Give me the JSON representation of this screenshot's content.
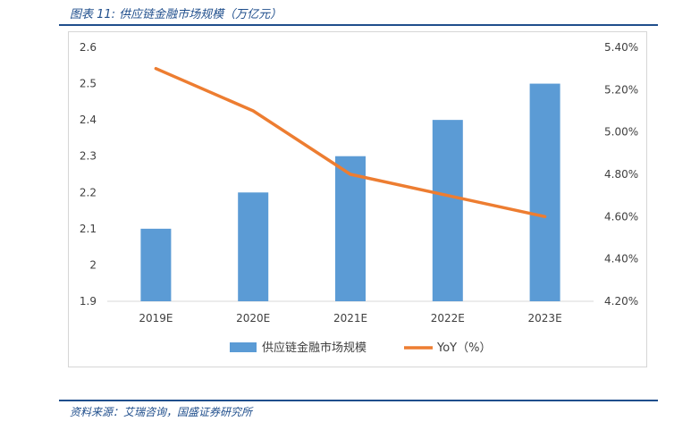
{
  "figure": {
    "title": "图表 11:  供应链金融市场规模（万亿元）",
    "source": "资料来源：艾瑞咨询，国盛证券研究所"
  },
  "colors": {
    "bar": "#5b9bd5",
    "line": "#ed7d31",
    "accent": "#1f4e8c"
  },
  "chart_data": {
    "type": "bar",
    "categories": [
      "2019E",
      "2020E",
      "2021E",
      "2022E",
      "2023E"
    ],
    "series": [
      {
        "name": "供应链金融市场规模",
        "type": "bar",
        "axis": "left",
        "values": [
          2.1,
          2.2,
          2.3,
          2.4,
          2.5
        ]
      },
      {
        "name": "YoY（%）",
        "type": "line",
        "axis": "right",
        "values": [
          5.3,
          5.1,
          4.8,
          4.7,
          4.6
        ]
      }
    ],
    "y_left": {
      "min": 1.9,
      "max": 2.6,
      "ticks": [
        1.9,
        2,
        2.1,
        2.2,
        2.3,
        2.4,
        2.5,
        2.6
      ],
      "tick_labels": [
        "1.9",
        "2",
        "2.1",
        "2.2",
        "2.3",
        "2.4",
        "2.5",
        "2.6"
      ]
    },
    "y_right": {
      "min": 4.2,
      "max": 5.4,
      "ticks": [
        4.2,
        4.4,
        4.6,
        4.8,
        5.0,
        5.2,
        5.4
      ],
      "tick_labels": [
        "4.20%",
        "4.40%",
        "4.60%",
        "4.80%",
        "5.00%",
        "5.20%",
        "5.40%"
      ]
    },
    "grid": false,
    "legend": [
      "供应链金融市场规模",
      "YoY（%）"
    ],
    "legend_position": "bottom"
  }
}
